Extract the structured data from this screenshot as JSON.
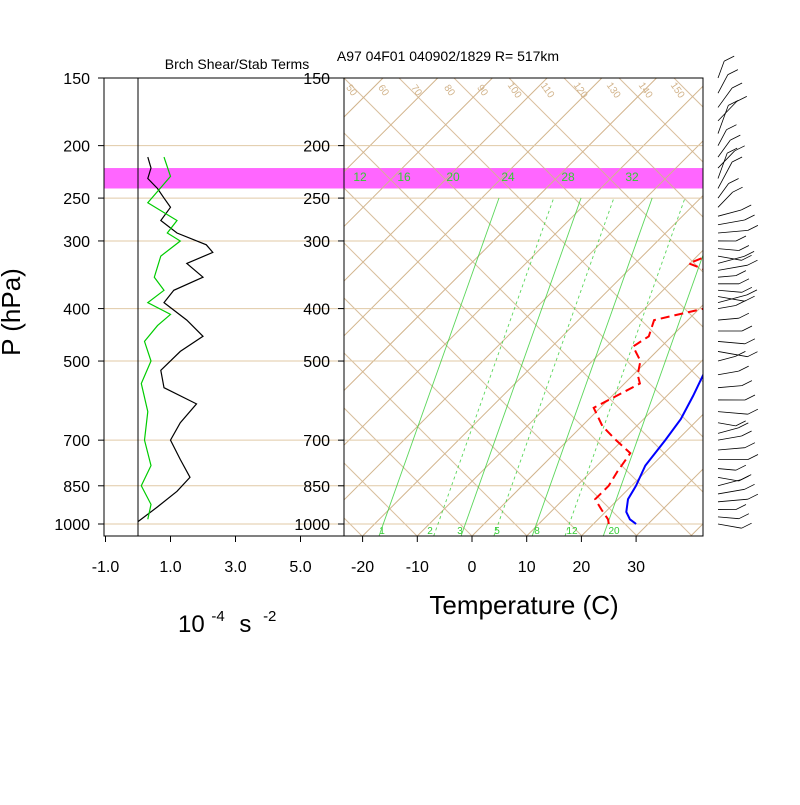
{
  "header": {
    "left_title": "Brch Shear/Stab Terms",
    "right_title": "A97 04F01 040902/1829 R= 517km"
  },
  "colors": {
    "background": "#ffffff",
    "skewt_lines": "#d2b48c",
    "mixing_ratio": "#33cc33",
    "temperature": "#0000ff",
    "dewpoint": "#ff0000",
    "highlight_band": "#ff66ff",
    "shear_line": "#000000",
    "stability_line": "#00cc00"
  },
  "chart_data": [
    {
      "type": "line",
      "title": "Brch Shear/Stab Terms",
      "xlabel": "10-4 s -2",
      "xlabel_base": "10",
      "xlabel_exp": "-4",
      "xlabel_unit": "s",
      "xlabel_unit_exp": "-2",
      "ylabel": "P (hPa)",
      "x_ticks": [
        "-1.0",
        "1.0",
        "3.0",
        "5.0"
      ],
      "x_tick_values": [
        -1,
        1,
        3,
        5
      ],
      "xlim": [
        -1,
        5
      ],
      "y_scale": "log",
      "y_ticks": [
        "150",
        "200",
        "250",
        "300",
        "400",
        "500",
        "700",
        "850",
        "1000"
      ],
      "y_tick_values": [
        150,
        200,
        250,
        300,
        400,
        500,
        700,
        850,
        1000
      ],
      "ylim": [
        1000,
        150
      ],
      "series": [
        {
          "color": "black",
          "points": [
            [
              0.3,
              210
            ],
            [
              0.4,
              220
            ],
            [
              0.3,
              230
            ],
            [
              0.6,
              240
            ],
            [
              0.8,
              250
            ],
            [
              1.0,
              260
            ],
            [
              0.7,
              275
            ],
            [
              1.2,
              290
            ],
            [
              2.1,
              305
            ],
            [
              2.3,
              315
            ],
            [
              1.5,
              330
            ],
            [
              2.0,
              350
            ],
            [
              1.1,
              370
            ],
            [
              0.8,
              390
            ],
            [
              1.5,
              420
            ],
            [
              2.0,
              450
            ],
            [
              1.3,
              480
            ],
            [
              0.7,
              520
            ],
            [
              0.8,
              560
            ],
            [
              1.8,
              600
            ],
            [
              1.3,
              650
            ],
            [
              1.0,
              700
            ],
            [
              1.3,
              760
            ],
            [
              1.6,
              820
            ],
            [
              1.2,
              870
            ],
            [
              0.6,
              930
            ],
            [
              0.0,
              990
            ]
          ]
        },
        {
          "color": "green",
          "points": [
            [
              0.8,
              210
            ],
            [
              1.0,
              228
            ],
            [
              0.3,
              255
            ],
            [
              1.2,
              275
            ],
            [
              0.9,
              290
            ],
            [
              1.3,
              300
            ],
            [
              0.7,
              320
            ],
            [
              0.5,
              350
            ],
            [
              0.8,
              370
            ],
            [
              0.3,
              390
            ],
            [
              1.0,
              410
            ],
            [
              0.6,
              430
            ],
            [
              0.2,
              460
            ],
            [
              0.4,
              500
            ],
            [
              0.1,
              550
            ],
            [
              0.3,
              620
            ],
            [
              0.2,
              700
            ],
            [
              0.4,
              780
            ],
            [
              0.1,
              850
            ],
            [
              0.4,
              920
            ],
            [
              0.3,
              980
            ]
          ]
        }
      ]
    },
    {
      "type": "line",
      "title": "A97 04F01 040902/1829 R= 517km",
      "xlabel": "Temperature (C)",
      "x_ticks": [
        "-20",
        "-10",
        "0",
        "10",
        "20",
        "30"
      ],
      "x_tick_values": [
        -20,
        -10,
        0,
        10,
        20,
        30
      ],
      "xlim": [
        -23,
        43
      ],
      "y_scale": "log",
      "y_ticks": [
        "150",
        "200",
        "250",
        "300",
        "400",
        "500",
        "700",
        "850",
        "1000"
      ],
      "y_tick_values": [
        150,
        200,
        250,
        300,
        400,
        500,
        700,
        850,
        1000
      ],
      "ylim": [
        1000,
        150
      ],
      "highlight_band_hpa": [
        220,
        240
      ],
      "mixing_ratio_labels_top": [
        "12",
        "16",
        "20",
        "24",
        "28",
        "32"
      ],
      "mixing_ratio_labels_bottom": [
        "1",
        "2",
        "3",
        "5",
        "8",
        "12",
        "20"
      ],
      "isotherm_labels": [
        "50",
        "60",
        "70",
        "80",
        "90",
        "100",
        "110",
        "120",
        "130",
        "140",
        "150"
      ],
      "series": [
        {
          "name": "Temperature",
          "color": "blue",
          "style": "solid",
          "points": [
            [
              30,
              1000
            ],
            [
              28,
              980
            ],
            [
              26,
              950
            ],
            [
              24,
              900
            ],
            [
              23,
              850
            ],
            [
              21,
              780
            ],
            [
              20,
              700
            ],
            [
              19,
              640
            ],
            [
              17,
              580
            ],
            [
              15,
              530
            ],
            [
              13,
              490
            ],
            [
              12,
              460
            ],
            [
              11,
              420
            ],
            [
              10,
              390
            ],
            [
              8,
              350
            ],
            [
              7,
              320
            ],
            [
              6,
              300
            ],
            [
              4,
              270
            ],
            [
              2,
              240
            ],
            [
              0,
              215
            ],
            [
              -2,
              205
            ]
          ]
        },
        {
          "name": "Dewpoint",
          "color": "red",
          "style": "dashed",
          "points": [
            [
              25,
              1000
            ],
            [
              24,
              980
            ],
            [
              21,
              940
            ],
            [
              18,
              900
            ],
            [
              18,
              850
            ],
            [
              17,
              800
            ],
            [
              16,
              740
            ],
            [
              11,
              700
            ],
            [
              6,
              660
            ],
            [
              1,
              610
            ],
            [
              3,
              580
            ],
            [
              5,
              550
            ],
            [
              3,
              530
            ],
            [
              1,
              500
            ],
            [
              -3,
              470
            ],
            [
              -2,
              450
            ],
            [
              -4,
              420
            ],
            [
              3,
              400
            ],
            [
              3,
              370
            ],
            [
              1,
              350
            ],
            [
              -8,
              330
            ],
            [
              -6,
              320
            ],
            [
              1,
              300
            ],
            [
              2,
              280
            ],
            [
              -2,
              255
            ],
            [
              -5,
              240
            ],
            [
              -5,
              230
            ]
          ]
        }
      ]
    }
  ]
}
